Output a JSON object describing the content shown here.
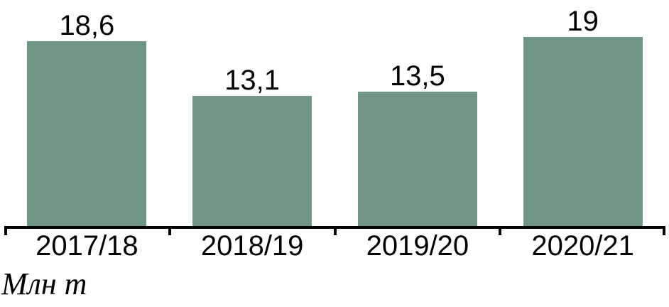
{
  "chart_data": {
    "type": "bar",
    "categories": [
      "2017/18",
      "2018/19",
      "2019/20",
      "2020/21"
    ],
    "values": [
      18.6,
      13.1,
      13.5,
      19
    ],
    "value_labels": [
      "18,6",
      "13,1",
      "13,5",
      "19"
    ],
    "unit_label": "Млн т",
    "title": "",
    "xlabel": "",
    "ylabel": "Млн т",
    "ylim": [
      0,
      22.7
    ],
    "grid": false,
    "legend": false,
    "bar_color": "#6F9584",
    "axis_color": "#000000",
    "text_color": "#000000",
    "background_color": "#FFFFFF"
  }
}
